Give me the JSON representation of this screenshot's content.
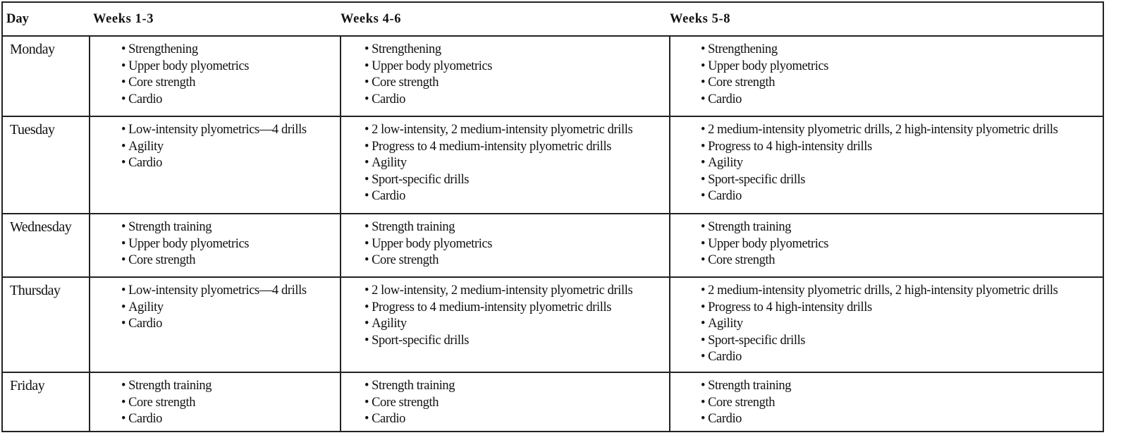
{
  "headers": {
    "day": "Day",
    "w1": "Weeks 1-3",
    "w2": "Weeks 4-6",
    "w3": "Weeks 5-8"
  },
  "rows": [
    {
      "day": "Monday",
      "w1": [
        "Strengthening",
        "Upper body plyometrics",
        "Core strength",
        "Cardio"
      ],
      "w2": [
        "Strengthening",
        "Upper body plyometrics",
        "Core strength",
        "Cardio"
      ],
      "w3": [
        "Strengthening",
        "Upper body plyometrics",
        "Core strength",
        "Cardio"
      ]
    },
    {
      "day": "Tuesday",
      "w1": [
        "Low-intensity plyometrics—4 drills",
        "Agility",
        "Cardio"
      ],
      "w2": [
        "2 low-intensity, 2 medium-intensity plyometric drills",
        "Progress to 4 medium-intensity plyometric drills",
        "Agility",
        "Sport-specific drills",
        "Cardio"
      ],
      "w3": [
        "2 medium-intensity plyometric drills, 2 high-intensity plyometric drills",
        "Progress to 4 high-intensity drills",
        "Agility",
        "Sport-specific drills",
        "Cardio"
      ]
    },
    {
      "day": "Wednesday",
      "w1": [
        "Strength training",
        "Upper body plyometrics",
        "Core strength"
      ],
      "w2": [
        "Strength training",
        "Upper body plyometrics",
        "Core strength"
      ],
      "w3": [
        "Strength training",
        "Upper body plyometrics",
        "Core strength"
      ]
    },
    {
      "day": "Thursday",
      "w1": [
        "Low-intensity plyometrics—4 drills",
        "Agility",
        "Cardio"
      ],
      "w2": [
        "2 low-intensity, 2 medium-intensity plyometric drills",
        "Progress to 4 medium-intensity plyometric drills",
        "Agility",
        "Sport-specific drills"
      ],
      "w3": [
        "2 medium-intensity plyometric drills, 2 high-intensity plyometric drills",
        "Progress to 4 high-intensity drills",
        "Agility",
        "Sport-specific drills",
        "Cardio"
      ]
    },
    {
      "day": "Friday",
      "w1": [
        "Strength training",
        "Core strength",
        "Cardio"
      ],
      "w2": [
        "Strength training",
        "Core strength",
        "Cardio"
      ],
      "w3": [
        "Strength training",
        "Core strength",
        "Cardio"
      ]
    }
  ]
}
